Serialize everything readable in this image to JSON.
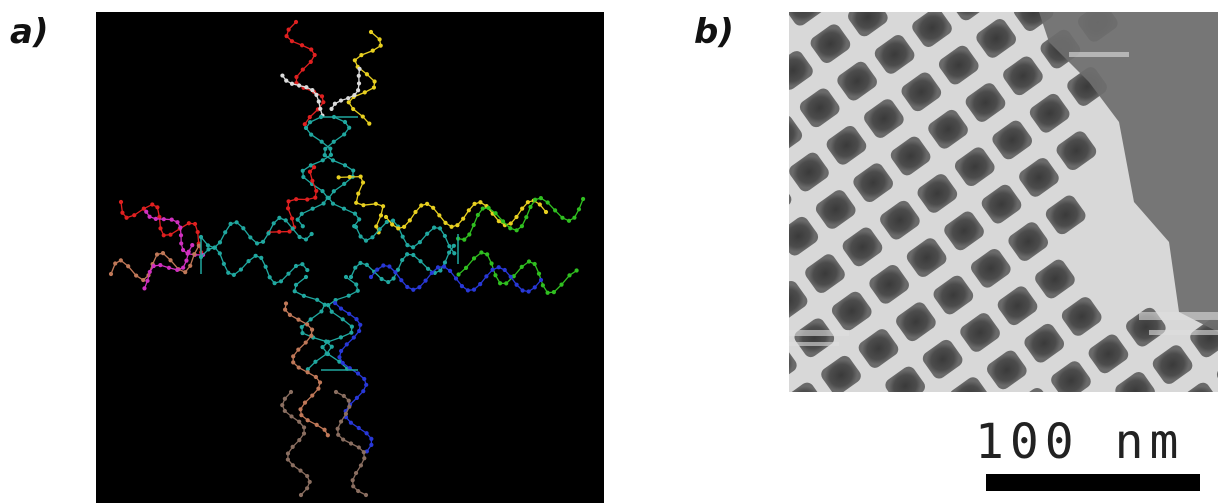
{
  "panels": {
    "a": {
      "label": "a)"
    },
    "b": {
      "label": "b)"
    }
  },
  "scale_bar": {
    "label": "100 nm"
  },
  "colors": {
    "background_a": "#000000",
    "red": "#e02020",
    "white": "#dcdcdc",
    "yellow": "#e8d020",
    "teal": "#20a8a0",
    "magenta": "#d030c0",
    "brown": "#c07858",
    "green": "#30c020",
    "blue": "#2838d8",
    "grey_brown": "#8a6e60"
  }
}
